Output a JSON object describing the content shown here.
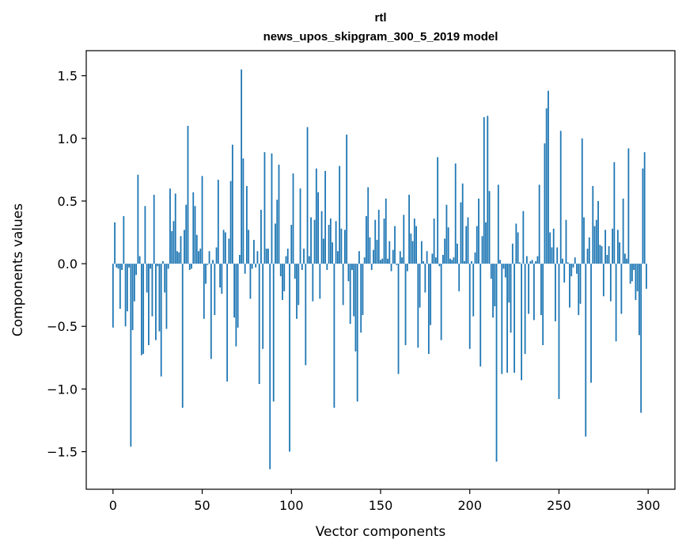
{
  "chart_data": {
    "type": "bar",
    "title": "rtl",
    "subtitle": "news_upos_skipgram_300_5_2019 model",
    "xlabel": "Vector components",
    "ylabel": "Components values",
    "xlim": [
      -15,
      315
    ],
    "ylim": [
      -1.8,
      1.7
    ],
    "xticks": [
      0,
      50,
      100,
      150,
      200,
      250,
      300
    ],
    "yticks": [
      -1.5,
      -1.0,
      -0.5,
      0.0,
      0.5,
      1.0,
      1.5
    ],
    "ytick_labels": [
      "−1.5",
      "−1.0",
      "−0.5",
      "0.0",
      "0.5",
      "1.0",
      "1.5"
    ],
    "bar_color": "#1f77b4",
    "values": [
      -0.51,
      0.33,
      -0.03,
      -0.04,
      -0.36,
      -0.05,
      0.38,
      -0.5,
      -0.38,
      -0.03,
      -1.46,
      -0.53,
      -0.3,
      -0.09,
      0.71,
      0.06,
      -0.73,
      -0.72,
      0.46,
      -0.23,
      -0.65,
      -0.04,
      -0.42,
      0.55,
      -0.61,
      -0.02,
      -0.54,
      -0.9,
      0.02,
      -0.23,
      -0.52,
      -0.04,
      0.6,
      0.26,
      0.34,
      0.56,
      0.1,
      0.09,
      0.22,
      -1.15,
      0.27,
      0.47,
      1.1,
      -0.05,
      -0.04,
      0.57,
      0.46,
      0.23,
      0.1,
      0.12,
      0.7,
      -0.44,
      -0.16,
      -0.01,
      0.1,
      -0.76,
      0.03,
      -0.41,
      0.13,
      0.67,
      -0.19,
      -0.24,
      0.27,
      0.25,
      -0.94,
      0.2,
      0.66,
      0.95,
      -0.43,
      -0.66,
      -0.51,
      0.07,
      1.55,
      0.84,
      -0.08,
      0.62,
      0.27,
      -0.28,
      -0.04,
      0.19,
      -0.03,
      0.1,
      -0.96,
      0.43,
      -0.68,
      0.89,
      0.12,
      0.12,
      -1.64,
      0.88,
      -1.1,
      0.32,
      0.51,
      0.79,
      -0.1,
      -0.29,
      -0.22,
      0.06,
      0.12,
      -1.5,
      0.31,
      0.72,
      -0.12,
      -0.44,
      -0.33,
      0.6,
      -0.05,
      0.12,
      -0.81,
      1.09,
      0.06,
      0.37,
      -0.3,
      0.35,
      0.76,
      0.57,
      -0.28,
      0.42,
      0.2,
      0.74,
      -0.05,
      0.31,
      0.36,
      0.17,
      -1.15,
      0.34,
      0.1,
      0.78,
      0.28,
      -0.33,
      0.27,
      1.03,
      -0.14,
      -0.48,
      -0.05,
      -0.42,
      -0.7,
      -1.1,
      0.1,
      -0.55,
      -0.41,
      0.05,
      0.38,
      0.61,
      0.21,
      -0.05,
      0.11,
      0.35,
      0.19,
      0.43,
      0.03,
      0.04,
      0.36,
      0.52,
      0.04,
      0.18,
      -0.06,
      0.11,
      0.3,
      -0.01,
      -0.88,
      0.1,
      0.05,
      0.39,
      -0.65,
      -0.06,
      0.55,
      0.24,
      0.18,
      0.36,
      0.3,
      -0.67,
      -0.35,
      0.18,
      0.02,
      -0.23,
      0.1,
      -0.72,
      -0.49,
      0.08,
      0.36,
      0.05,
      0.85,
      -0.02,
      -0.61,
      0.07,
      0.2,
      0.47,
      0.29,
      0.04,
      0.03,
      0.05,
      0.8,
      0.16,
      -0.22,
      0.49,
      0.64,
      0.02,
      0.3,
      0.37,
      -0.68,
      0.02,
      -0.42,
      0.09,
      0.3,
      0.52,
      -0.82,
      0.22,
      1.17,
      0.33,
      1.18,
      0.58,
      -0.12,
      -0.43,
      -0.34,
      -1.58,
      0.63,
      0.03,
      -0.88,
      -0.04,
      -0.11,
      -0.87,
      -0.31,
      -0.55,
      0.16,
      -0.87,
      0.32,
      0.25,
      0.01,
      -0.93,
      0.42,
      -0.72,
      0.06,
      -0.4,
      0.02,
      0.03,
      -0.45,
      0.02,
      0.06,
      0.63,
      -0.41,
      -0.65,
      0.96,
      1.24,
      1.38,
      0.25,
      0.13,
      0.28,
      -0.46,
      0.13,
      -1.08,
      1.06,
      0.04,
      -0.15,
      0.35,
      0.01,
      -0.35,
      -0.1,
      -0.03,
      0.05,
      -0.08,
      -0.41,
      -0.32,
      1.0,
      0.37,
      -1.38,
      0.12,
      0.21,
      -0.95,
      0.62,
      0.3,
      0.35,
      0.5,
      0.15,
      0.14,
      -0.26,
      0.27,
      0.07,
      0.14,
      -0.3,
      0.28,
      0.81,
      -0.62,
      0.27,
      0.17,
      -0.4,
      0.52,
      0.08,
      0.04,
      0.92,
      -0.16,
      -0.14,
      -0.05,
      -0.29,
      -0.22,
      -0.57,
      -1.19,
      0.76,
      0.89,
      -0.2
    ]
  }
}
